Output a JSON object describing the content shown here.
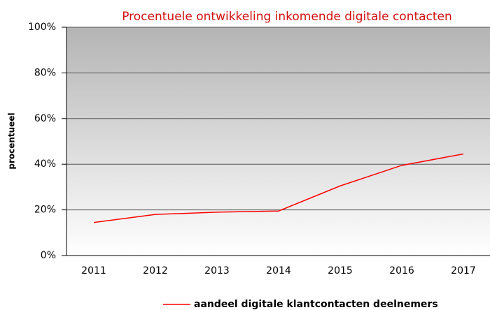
{
  "chart_data": {
    "type": "line",
    "title": "Procentuele ontwikkeling inkomende digitale contacten",
    "y_label": "procentueel",
    "categories": [
      "2011",
      "2012",
      "2013",
      "2014",
      "2015",
      "2016",
      "2017"
    ],
    "series": [
      {
        "name": "aandeel digitale klantcontacten deelnemers",
        "color": "#ff0000",
        "values": [
          14.5,
          18,
          19,
          19.5,
          30.5,
          39.5,
          44.5
        ]
      }
    ],
    "ylim": [
      0,
      100
    ],
    "yticks": [
      {
        "value": 0,
        "label": "0%"
      },
      {
        "value": 20,
        "label": "20%"
      },
      {
        "value": 40,
        "label": "40%"
      },
      {
        "value": 60,
        "label": "60%"
      },
      {
        "value": 80,
        "label": "80%"
      },
      {
        "value": 100,
        "label": "100%"
      }
    ],
    "grid": true,
    "legend": "bottom"
  }
}
